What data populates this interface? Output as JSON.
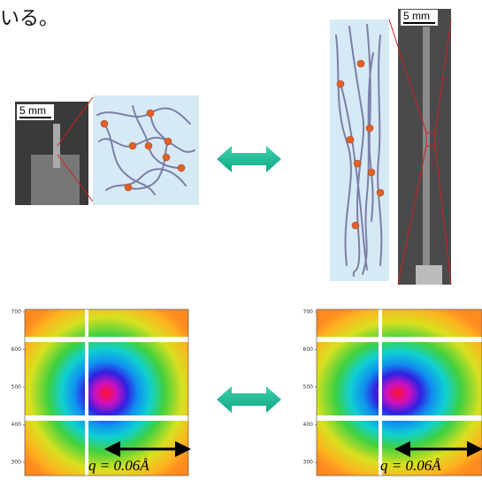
{
  "header": {
    "text": "いる。"
  },
  "left_photo": {
    "scale_label": "5 mm"
  },
  "right_photo": {
    "scale_label": "5 mm"
  },
  "left_pattern": {
    "yticks": [
      700,
      600,
      500,
      400,
      300
    ],
    "q_label": "q = 0.06Å"
  },
  "right_pattern": {
    "yticks": [
      700,
      600,
      500,
      400,
      300
    ],
    "q_label": "q = 0.06Å"
  }
}
